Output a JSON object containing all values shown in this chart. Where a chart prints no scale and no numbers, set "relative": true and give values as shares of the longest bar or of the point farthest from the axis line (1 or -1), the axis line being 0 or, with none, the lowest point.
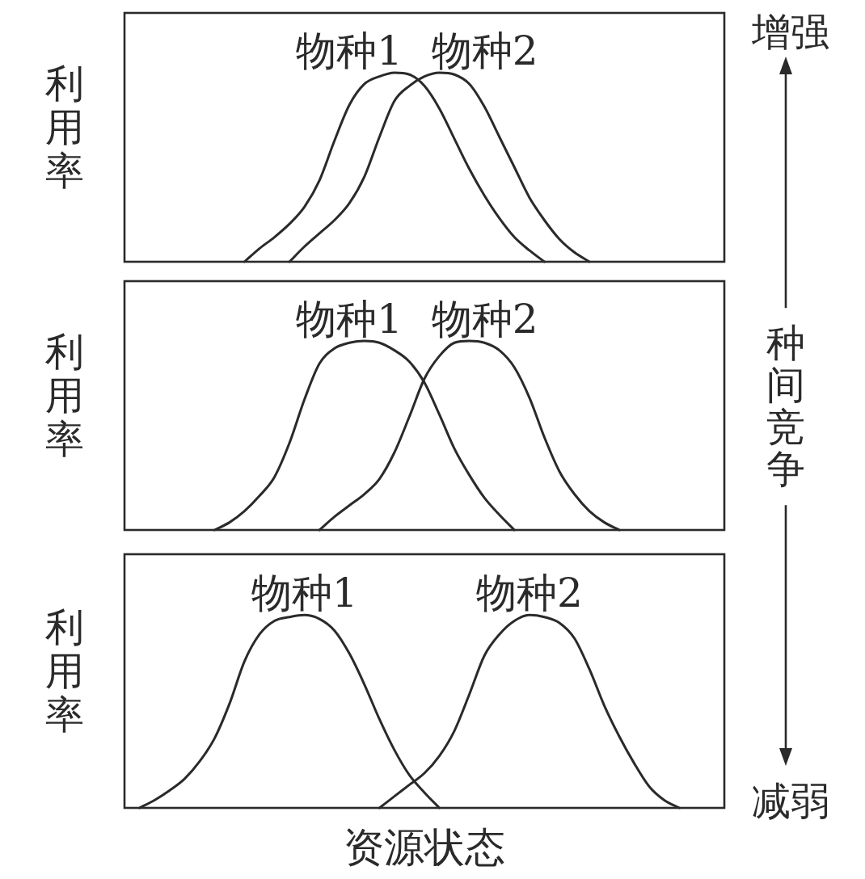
{
  "chart_data": [
    {
      "type": "line",
      "relative": true,
      "ylabel": "利用率",
      "annotations": [
        "增强"
      ],
      "categories": [
        null,
        null,
        null,
        null,
        null,
        null,
        null,
        null,
        null,
        null,
        null,
        null,
        null,
        null,
        null,
        null,
        null,
        null,
        null,
        null,
        null,
        null,
        null,
        null,
        null,
        null,
        null,
        null,
        null,
        null,
        null,
        null,
        null,
        null,
        null,
        null,
        null,
        null,
        null,
        null,
        null
      ],
      "series": [
        {
          "name": "物种1",
          "color": "#2a2a2a",
          "values": [
            null,
            null,
            null,
            null,
            null,
            null,
            null,
            null,
            0,
            0.07,
            0.13,
            0.2,
            0.29,
            0.43,
            0.64,
            0.83,
            0.94,
            0.98,
            1,
            0.99,
            0.93,
            0.81,
            0.65,
            0.49,
            0.35,
            0.23,
            0.13,
            0.06,
            0,
            null,
            null,
            null,
            null,
            null,
            null,
            null,
            null,
            null,
            null,
            null,
            null
          ]
        },
        {
          "name": "物种2",
          "color": "#2a2a2a",
          "values": [
            null,
            null,
            null,
            null,
            null,
            null,
            null,
            null,
            null,
            null,
            null,
            0,
            0.08,
            0.15,
            0.22,
            0.31,
            0.45,
            0.66,
            0.85,
            0.93,
            0.98,
            1,
            0.99,
            0.94,
            0.82,
            0.66,
            0.5,
            0.34,
            0.22,
            0.12,
            0.05,
            0,
            null,
            null,
            null,
            null,
            null,
            null,
            null,
            null,
            null
          ]
        }
      ]
    },
    {
      "type": "line",
      "relative": true,
      "ylabel": "利用率",
      "annotations": [
        "种间竞争"
      ],
      "categories": [
        null,
        null,
        null,
        null,
        null,
        null,
        null,
        null,
        null,
        null,
        null,
        null,
        null,
        null,
        null,
        null,
        null,
        null,
        null,
        null,
        null,
        null,
        null,
        null,
        null,
        null,
        null,
        null,
        null,
        null,
        null,
        null,
        null,
        null,
        null,
        null,
        null,
        null,
        null,
        null,
        null
      ],
      "series": [
        {
          "name": "物种1",
          "color": "#2a2a2a",
          "values": [
            null,
            null,
            null,
            null,
            null,
            null,
            0,
            0.04,
            0.1,
            0.18,
            0.28,
            0.46,
            0.69,
            0.88,
            0.96,
            0.99,
            1,
            0.99,
            0.95,
            0.89,
            0.78,
            0.61,
            0.43,
            0.29,
            0.17,
            0.08,
            0,
            null,
            null,
            null,
            null,
            null,
            null,
            null,
            null,
            null,
            null,
            null,
            null,
            null,
            null
          ]
        },
        {
          "name": "物种2",
          "color": "#2a2a2a",
          "values": [
            null,
            null,
            null,
            null,
            null,
            null,
            null,
            null,
            null,
            null,
            null,
            null,
            null,
            0,
            0.07,
            0.13,
            0.19,
            0.27,
            0.41,
            0.6,
            0.8,
            0.92,
            0.99,
            1,
            0.99,
            0.95,
            0.86,
            0.7,
            0.49,
            0.31,
            0.19,
            0.1,
            0.04,
            0,
            null,
            null,
            null,
            null,
            null,
            null,
            null
          ]
        }
      ]
    },
    {
      "type": "line",
      "relative": true,
      "ylabel": "利用率",
      "xlabel": "资源状态",
      "annotations": [
        "减弱"
      ],
      "categories": [
        null,
        null,
        null,
        null,
        null,
        null,
        null,
        null,
        null,
        null,
        null,
        null,
        null,
        null,
        null,
        null,
        null,
        null,
        null,
        null,
        null,
        null,
        null,
        null,
        null,
        null,
        null,
        null,
        null,
        null,
        null,
        null,
        null,
        null,
        null,
        null,
        null,
        null,
        null,
        null,
        null
      ],
      "series": [
        {
          "name": "物种1",
          "color": "#2a2a2a",
          "values": [
            null,
            0,
            0.04,
            0.09,
            0.15,
            0.24,
            0.36,
            0.54,
            0.76,
            0.9,
            0.97,
            0.99,
            1,
            0.98,
            0.92,
            0.8,
            0.64,
            0.46,
            0.3,
            0.17,
            0.08,
            0,
            null,
            null,
            null,
            null,
            null,
            null,
            null,
            null,
            null,
            null,
            null,
            null,
            null,
            null,
            null,
            null,
            null,
            null,
            null
          ]
        },
        {
          "name": "物种2",
          "color": "#2a2a2a",
          "values": [
            null,
            null,
            null,
            null,
            null,
            null,
            null,
            null,
            null,
            null,
            null,
            null,
            null,
            null,
            null,
            null,
            null,
            0,
            0.06,
            0.12,
            0.18,
            0.27,
            0.4,
            0.59,
            0.79,
            0.9,
            0.97,
            1,
            0.99,
            0.96,
            0.88,
            0.72,
            0.53,
            0.37,
            0.23,
            0.11,
            0.04,
            0,
            null,
            null,
            null
          ]
        }
      ]
    }
  ]
}
